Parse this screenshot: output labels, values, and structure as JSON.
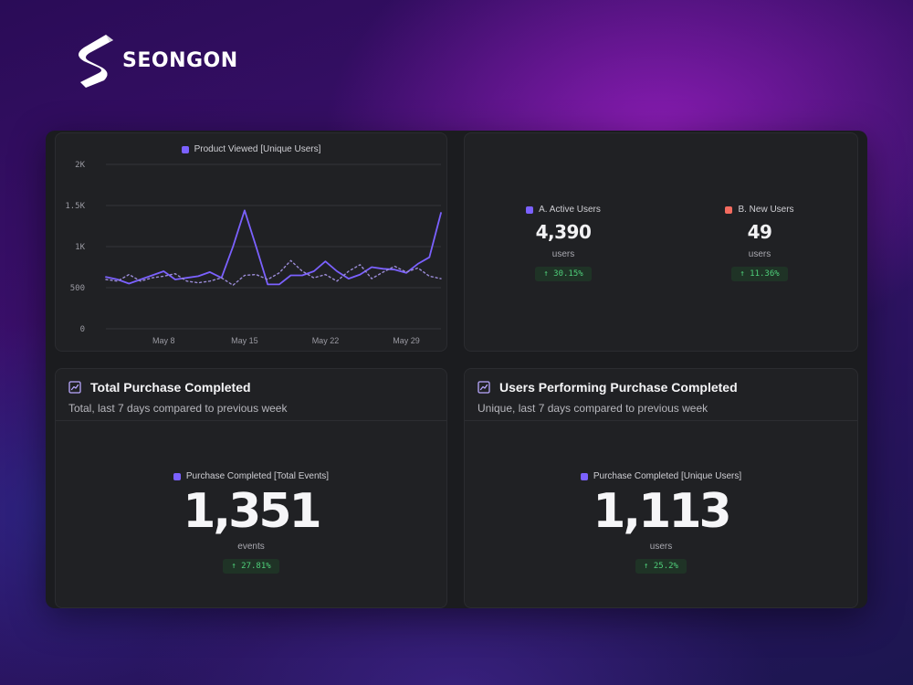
{
  "brand": {
    "name": "SEONGON"
  },
  "colors": {
    "accent_purple": "#7b61ff",
    "accent_coral": "#f36b5f",
    "positive_green": "#4fcf7a",
    "panel_bg": "#202124"
  },
  "line_chart": {
    "legend_label": "Product Viewed [Unique Users]",
    "chart_data": {
      "type": "line",
      "title": "",
      "xlabel": "",
      "ylabel": "",
      "ylim": [
        0,
        2000
      ],
      "yticks": [
        0,
        500,
        1000,
        1500,
        2000
      ],
      "ytick_labels": [
        "0",
        "500",
        "1K",
        "1.5K",
        "2K"
      ],
      "xticks": [
        {
          "index": 5,
          "label": "May 8"
        },
        {
          "index": 12,
          "label": "May 15"
        },
        {
          "index": 19,
          "label": "May 22"
        },
        {
          "index": 26,
          "label": "May 29"
        }
      ],
      "grid": true,
      "legend_position": "top-center",
      "series": [
        {
          "name": "Product Viewed [Unique Users]",
          "style": "solid",
          "values": [
            630,
            600,
            550,
            600,
            650,
            700,
            600,
            620,
            640,
            690,
            620,
            1000,
            1440,
            1000,
            540,
            540,
            650,
            650,
            700,
            820,
            700,
            610,
            660,
            750,
            730,
            720,
            680,
            790,
            870,
            1410
          ]
        },
        {
          "style": "dotted",
          "values": [
            600,
            580,
            660,
            580,
            620,
            640,
            670,
            580,
            560,
            580,
            620,
            530,
            650,
            660,
            600,
            680,
            830,
            700,
            620,
            660,
            580,
            700,
            780,
            610,
            690,
            760,
            690,
            740,
            640,
            610
          ]
        }
      ]
    }
  },
  "metrics": {
    "a": {
      "label": "A. Active Users",
      "value": "4,390",
      "unit": "users",
      "delta": "↑ 30.15%"
    },
    "b": {
      "label": "B. New Users",
      "value": "49",
      "unit": "users",
      "delta": "↑ 11.36%"
    }
  },
  "total_purchase": {
    "title": "Total Purchase Completed",
    "subtitle": "Total, last 7 days compared to previous week",
    "legend_label": "Purchase Completed [Total Events]",
    "value": "1,351",
    "unit": "events",
    "delta": "↑ 27.81%"
  },
  "users_purchase": {
    "title": "Users Performing Purchase Completed",
    "subtitle": "Unique, last 7 days compared to previous week",
    "legend_label": "Purchase Completed [Unique Users]",
    "value": "1,113",
    "unit": "users",
    "delta": "↑ 25.2%"
  }
}
